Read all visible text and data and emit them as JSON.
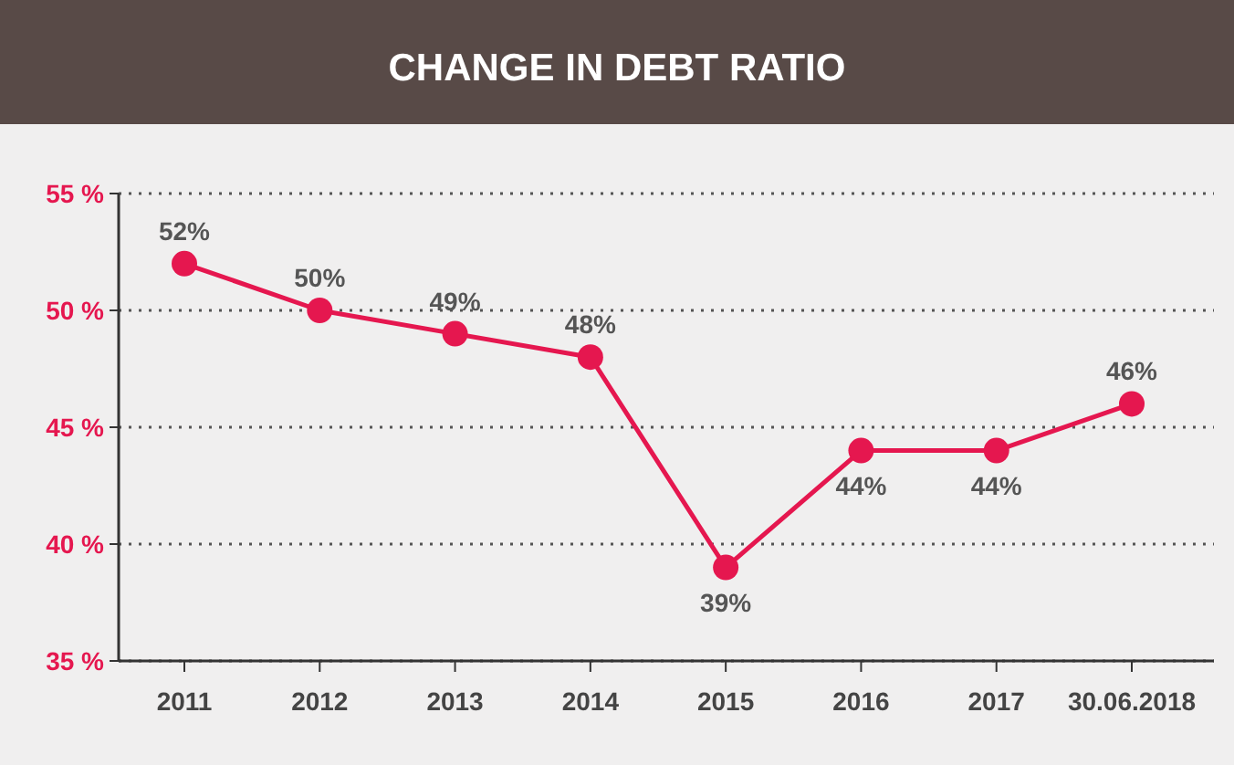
{
  "chart_data": {
    "type": "line",
    "title": "CHANGE IN DEBT RATIO",
    "categories": [
      "2011",
      "2012",
      "2013",
      "2014",
      "2015",
      "2016",
      "2017",
      "30.06.2018"
    ],
    "series": [
      {
        "color": "#e5174f",
        "values": [
          52,
          50,
          49,
          48,
          39,
          44,
          44,
          46
        ],
        "value_labels": [
          "52%",
          "50%",
          "49%",
          "48%",
          "39%",
          "44%",
          "44%",
          "46%"
        ]
      }
    ],
    "ylim": [
      35,
      55
    ],
    "yticks": [
      {
        "value": 35,
        "label": "35 %"
      },
      {
        "value": 40,
        "label": "40 %"
      },
      {
        "value": 45,
        "label": "45 %"
      },
      {
        "value": 50,
        "label": "50 %"
      },
      {
        "value": 55,
        "label": "55 %"
      }
    ],
    "grid": "y",
    "marker": "circle",
    "line_style": "solid"
  }
}
